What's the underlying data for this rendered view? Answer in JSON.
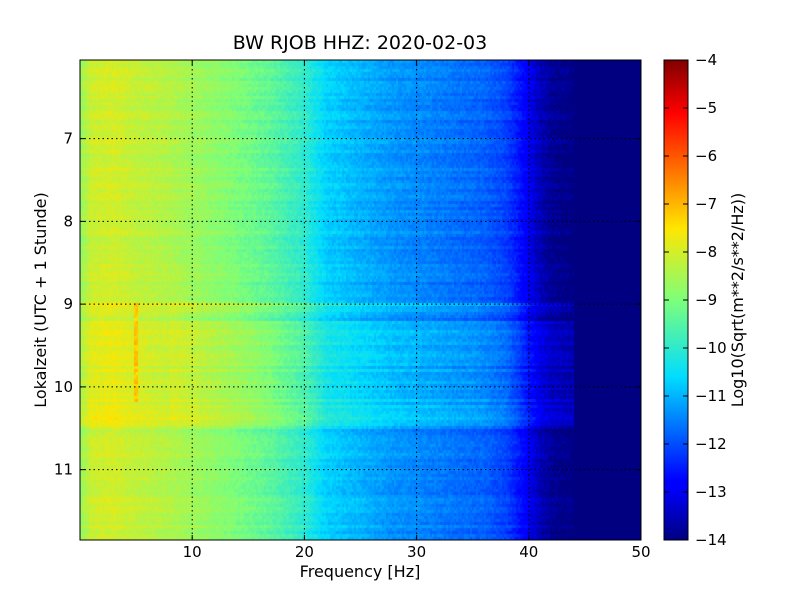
{
  "chart_data": {
    "type": "heatmap",
    "title": "BW RJOB HHZ: 2020-02-03",
    "xlabel": "Frequency [Hz]",
    "ylabel": "Lokalzeit (UTC + 1 Stunde)",
    "xlim": [
      0,
      50
    ],
    "ylim": [
      11.85,
      6.05
    ],
    "y_inverted": true,
    "grid": true,
    "x_ticks": [
      10,
      20,
      30,
      40,
      50
    ],
    "x_tick_labels": [
      "10",
      "20",
      "30",
      "40",
      "50"
    ],
    "y_ticks": [
      7,
      8,
      9,
      10,
      11
    ],
    "y_tick_labels": [
      "7",
      "8",
      "9",
      "10",
      "11"
    ],
    "colormap": "jet",
    "colorbar": {
      "label": "Log10(Sqrt(m**2/s**2/Hz))",
      "range": [
        -14,
        -4
      ],
      "ticks": [
        -4,
        -5,
        -6,
        -7,
        -8,
        -9,
        -10,
        -11,
        -12,
        -13,
        -14
      ],
      "tick_labels": [
        "−4",
        "−5",
        "−6",
        "−7",
        "−8",
        "−9",
        "−10",
        "−11",
        "−12",
        "−13",
        "−14"
      ]
    },
    "base_spectrum": {
      "frequency_hz": [
        0,
        1,
        3,
        5,
        8,
        10,
        14,
        17,
        20,
        22,
        25,
        28,
        30,
        33,
        36,
        38,
        39,
        40,
        41,
        42,
        43,
        44,
        50
      ],
      "log10_amplitude": [
        -8.7,
        -8.1,
        -8.0,
        -8.2,
        -8.4,
        -8.6,
        -9.0,
        -9.4,
        -10.0,
        -10.7,
        -11.0,
        -11.3,
        -11.4,
        -11.6,
        -11.8,
        -12.1,
        -12.5,
        -13.0,
        -13.5,
        -13.8,
        -13.9,
        -14.0,
        -14.0
      ]
    },
    "noisy_periods": [
      {
        "start": 9.0,
        "end": 9.1,
        "delta": 0.5
      },
      {
        "start": 9.2,
        "end": 10.5,
        "delta": 0.45
      },
      {
        "start": 10.15,
        "end": 10.25,
        "delta": 0.7
      },
      {
        "start": 10.3,
        "end": 10.45,
        "delta": 0.5
      }
    ],
    "narrowband_lines": [
      {
        "frequency_hz": 5,
        "start": 9.0,
        "end": 10.2,
        "delta": 0.8
      }
    ]
  }
}
